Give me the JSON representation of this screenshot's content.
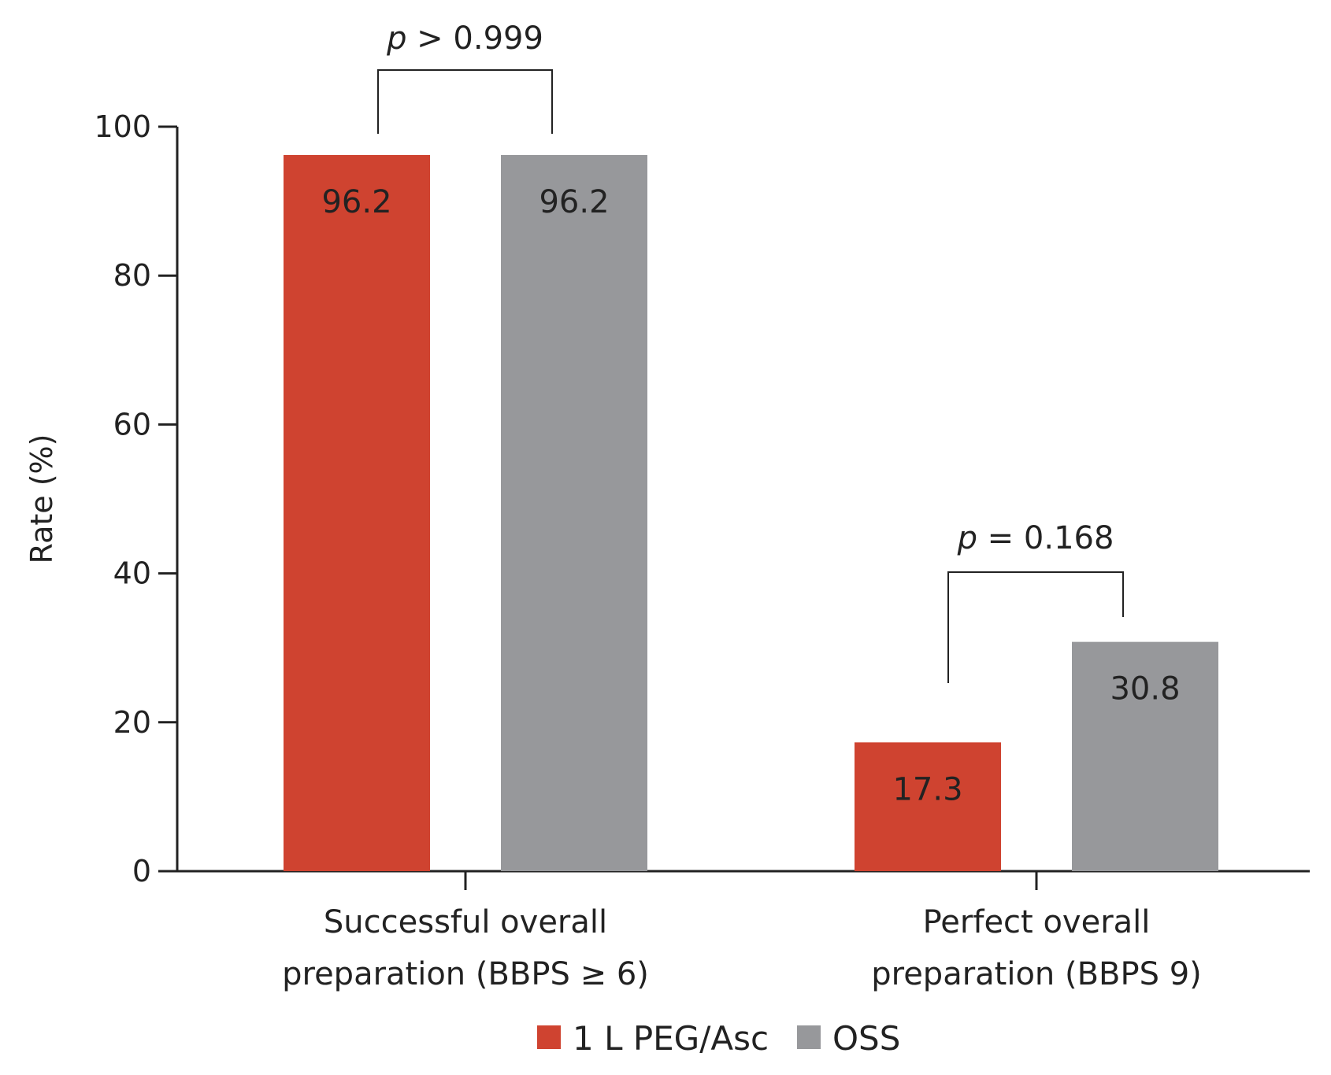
{
  "chart_data": {
    "type": "bar",
    "title": "",
    "xlabel": "",
    "ylabel": "Rate (%)",
    "ylim": [
      0,
      100
    ],
    "yticks": [
      0,
      20,
      40,
      60,
      80,
      100
    ],
    "categories": [
      [
        "Successful overall",
        "preparation (BBPS ≥ 6)"
      ],
      [
        "Perfect overall",
        "preparation (BBPS 9)"
      ]
    ],
    "series": [
      {
        "name": "1 L PEG/Asc",
        "color": "#cf4330",
        "values": [
          96.2,
          17.3
        ]
      },
      {
        "name": "OSS",
        "color": "#97989b",
        "values": [
          96.2,
          30.8
        ]
      }
    ],
    "data_labels": [
      [
        "96.2",
        "17.3"
      ],
      [
        "96.2",
        "30.8"
      ]
    ],
    "annotations": [
      {
        "category_index": 0,
        "prefix": "p",
        "text": " > 0.999"
      },
      {
        "category_index": 1,
        "prefix": "p",
        "text": " = 0.168"
      }
    ],
    "legend": {
      "position": "bottom-center"
    },
    "grid": false
  }
}
